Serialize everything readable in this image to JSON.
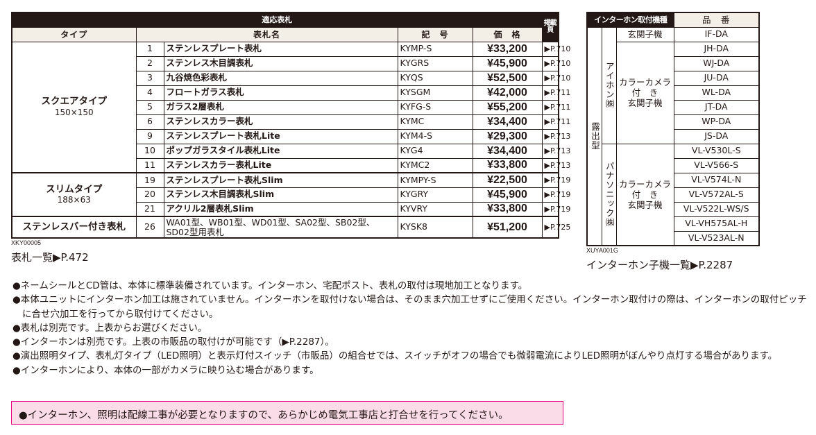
{
  "left_table": {
    "header_group": "適応表札",
    "page_header": "掲載頁",
    "columns": {
      "type": "タイプ",
      "name": "表札名",
      "code": "記　号",
      "price": "価　格"
    },
    "groups": [
      {
        "type": "スクエアタイプ",
        "size": "150×150",
        "rows": [
          {
            "no": "1",
            "name": "ステンレスプレート表札",
            "code": "KYMP-S",
            "price": "¥33,200",
            "page": "▶P.710"
          },
          {
            "no": "2",
            "name": "ステンレス木目調表札",
            "code": "KYGRS",
            "price": "¥45,900",
            "page": "▶P.710"
          },
          {
            "no": "3",
            "name": "九谷焼色彩表札",
            "code": "KYQS",
            "price": "¥52,500",
            "page": "▶P.710"
          },
          {
            "no": "4",
            "name": "フロートガラス表札",
            "code": "KYSGM",
            "price": "¥42,000",
            "page": "▶P.711"
          },
          {
            "no": "5",
            "name": "ガラス2層表札",
            "code": "KYFG-S",
            "price": "¥55,200",
            "page": "▶P.711"
          },
          {
            "no": "6",
            "name": "ステンレスカラー表札",
            "code": "KYMC",
            "price": "¥34,400",
            "page": "▶P.711"
          },
          {
            "no": "9",
            "name": "ステンレスプレート表札Lite",
            "code": "KYM4-S",
            "price": "¥29,300",
            "page": "▶P.713"
          },
          {
            "no": "10",
            "name": "ポップガラスタイル表札Lite",
            "code": "KYG4",
            "price": "¥34,400",
            "page": "▶P.713"
          },
          {
            "no": "11",
            "name": "ステンレスカラー表札Lite",
            "code": "KYMC2",
            "price": "¥33,800",
            "page": "▶P.713"
          }
        ]
      },
      {
        "type": "スリムタイプ",
        "size": "188×63",
        "rows": [
          {
            "no": "19",
            "name": "ステンレスプレート表札Slim",
            "code": "KYMPY-S",
            "price": "¥22,500",
            "page": "▶P.719"
          },
          {
            "no": "20",
            "name": "ステンレス木目調表札Slim",
            "code": "KYGRY",
            "price": "¥45,900",
            "page": "▶P.719"
          },
          {
            "no": "21",
            "name": "アクリル2層表札Slim",
            "code": "KYVRY",
            "price": "¥33,800",
            "page": "▶P.719"
          }
        ]
      },
      {
        "type": "ステンレスバー付き表札",
        "size": "",
        "rows": [
          {
            "no": "26",
            "name": "WA01型、WB01型、WD01型、SA02型、SB02型、",
            "name2": "SD02型用表札",
            "code": "KYSK8",
            "price": "¥51,200",
            "page": "▶P.725"
          }
        ]
      }
    ],
    "code_ref": "XKY00005",
    "link": "表札一覧▶P.472"
  },
  "right_table": {
    "header_models": "インターホン取付機種",
    "header_part": "品　番",
    "mount": "露出型",
    "makers": [
      {
        "name": "アイホン㈱",
        "types": [
          {
            "type": "玄関子機",
            "parts": [
              "IF-DA"
            ]
          },
          {
            "type": "カラーカメラ\n付　き\n玄関子機",
            "parts": [
              "JH-DA",
              "WJ-DA",
              "JU-DA",
              "WL-DA",
              "JT-DA",
              "WP-DA",
              "JS-DA"
            ]
          }
        ]
      },
      {
        "name": "パナソニック㈱",
        "types": [
          {
            "type": "カラーカメラ\n付　き\n玄関子機",
            "parts": [
              "VL-V530L-S",
              "VL-V566-S",
              "VL-V574L-N",
              "VL-V572AL-S",
              "VL-V522L-WS/S",
              "VL-VH575AL-H",
              "VL-V523AL-N"
            ]
          }
        ]
      }
    ],
    "code_ref": "XUYA001G",
    "link": "インターホン子機一覧▶P.2287"
  },
  "notes": [
    "ネームシールとCD管は、本体に標準装備されています。インターホン、宅配ポスト、表札の取付は現地加工となります。",
    "本体ユニットにインターホン加工は施されていません。インターホンを取付けない場合は、そのまま穴加工せずにご使用ください。インターホン取付けの際は、インターホンの取付ピッチに合せ穴加工を行ってから取付けてください。",
    "表札は別売です。上表からお選びください。",
    "インターホンは別売です。上表の市販品の取付けが可能です（▶P.2287）。",
    "演出照明タイプ、表札灯タイプ（LED照明）と表示灯付スイッチ（市販品）の組合せでは、スイッチがオフの場合でも微弱電流によりLED照明がぼんやり点灯する場合があります。",
    "インターホンにより、本体の一部がカメラに映り込む場合があります。"
  ],
  "warning": "●インターホン、照明は配線工事が必要となりますので、あらかじめ電気工事店と打合せを行ってください。",
  "colors": {
    "header_dark": "#231815",
    "header_beige": "#f3efe6",
    "warning_bg": "#fadce8",
    "warning_border": "#e4007f"
  }
}
